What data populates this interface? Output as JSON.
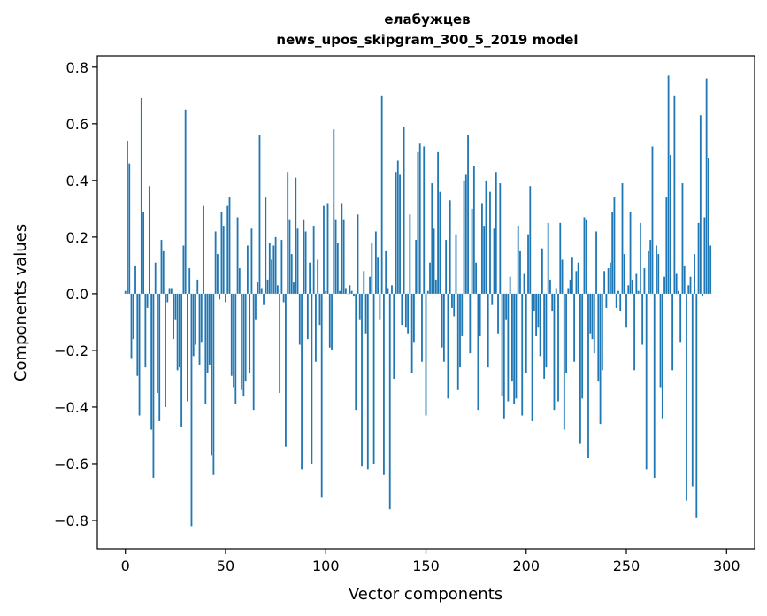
{
  "chart_data": {
    "type": "bar",
    "title": "елабужцев",
    "subtitle": "news_upos_skipgram_300_5_2019 model",
    "xlabel": "Vector components",
    "ylabel": "Components values",
    "xlim": [
      -14,
      314
    ],
    "ylim": [
      -0.9,
      0.84
    ],
    "xticks": [
      0,
      50,
      100,
      150,
      200,
      250,
      300
    ],
    "yticks": [
      -0.8,
      -0.6,
      -0.4,
      -0.2,
      0.0,
      0.2,
      0.4,
      0.6,
      0.8
    ],
    "ytick_labels": [
      "−0.8",
      "−0.6",
      "−0.4",
      "−0.2",
      "0.0",
      "0.2",
      "0.4",
      "0.6",
      "0.8"
    ],
    "bar_color": "#1f77b4",
    "grid": false,
    "x_start": 0,
    "values": [
      0.01,
      0.54,
      0.46,
      -0.23,
      -0.16,
      0.1,
      -0.29,
      -0.43,
      0.69,
      0.29,
      -0.26,
      -0.05,
      0.38,
      -0.48,
      -0.65,
      0.11,
      -0.35,
      -0.45,
      0.19,
      0.15,
      -0.4,
      -0.03,
      0.02,
      0.02,
      -0.16,
      -0.09,
      -0.27,
      -0.26,
      -0.47,
      0.17,
      0.65,
      -0.38,
      0.09,
      -0.82,
      -0.22,
      -0.18,
      0.05,
      -0.25,
      -0.17,
      0.31,
      -0.39,
      -0.28,
      -0.25,
      -0.57,
      -0.64,
      0.22,
      0.14,
      -0.02,
      0.29,
      0.24,
      -0.03,
      0.31,
      0.34,
      -0.29,
      -0.33,
      -0.39,
      0.27,
      0.09,
      -0.34,
      -0.36,
      -0.31,
      0.17,
      -0.28,
      0.23,
      -0.41,
      -0.09,
      0.04,
      0.56,
      0.02,
      -0.04,
      0.34,
      0.05,
      0.18,
      0.12,
      0.17,
      0.2,
      0.03,
      -0.35,
      0.19,
      -0.03,
      -0.54,
      0.43,
      0.26,
      0.14,
      0.04,
      0.41,
      0.23,
      -0.18,
      -0.62,
      0.26,
      0.22,
      -0.16,
      0.11,
      -0.6,
      0.24,
      -0.24,
      0.12,
      -0.11,
      -0.72,
      0.31,
      0.01,
      0.32,
      -0.19,
      -0.2,
      0.58,
      0.26,
      0.18,
      0.01,
      0.32,
      0.26,
      0.02,
      0.0,
      0.03,
      0.01,
      -0.01,
      -0.41,
      0.28,
      -0.09,
      -0.61,
      0.08,
      -0.14,
      -0.62,
      0.06,
      0.18,
      -0.6,
      0.22,
      0.13,
      -0.09,
      0.7,
      -0.64,
      0.15,
      0.02,
      -0.76,
      0.03,
      -0.3,
      0.43,
      0.47,
      0.42,
      -0.11,
      0.59,
      -0.12,
      -0.14,
      0.28,
      -0.28,
      -0.17,
      0.19,
      0.5,
      0.53,
      -0.24,
      0.52,
      -0.43,
      0.01,
      0.11,
      0.39,
      0.23,
      0.05,
      0.5,
      0.36,
      -0.19,
      -0.24,
      0.19,
      -0.37,
      0.33,
      -0.05,
      -0.08,
      0.21,
      -0.34,
      -0.26,
      -0.15,
      0.4,
      0.42,
      0.56,
      -0.21,
      0.3,
      0.45,
      0.11,
      -0.41,
      -0.15,
      0.32,
      0.24,
      0.4,
      -0.26,
      0.36,
      -0.04,
      0.23,
      0.43,
      -0.14,
      0.39,
      -0.36,
      -0.44,
      -0.09,
      -0.38,
      0.06,
      -0.31,
      -0.39,
      -0.37,
      0.24,
      0.15,
      -0.43,
      0.07,
      -0.28,
      0.21,
      0.38,
      -0.45,
      -0.06,
      -0.15,
      -0.12,
      -0.22,
      0.16,
      -0.3,
      -0.26,
      0.25,
      0.05,
      -0.06,
      -0.41,
      0.02,
      -0.38,
      0.25,
      0.12,
      -0.48,
      -0.28,
      0.02,
      0.05,
      0.13,
      -0.24,
      0.08,
      0.11,
      -0.53,
      -0.37,
      0.27,
      0.26,
      -0.58,
      -0.14,
      -0.16,
      -0.21,
      0.22,
      -0.31,
      -0.46,
      -0.27,
      0.08,
      -0.05,
      0.09,
      0.11,
      0.29,
      0.34,
      -0.05,
      0.01,
      -0.06,
      0.39,
      0.14,
      -0.12,
      0.03,
      0.29,
      0.05,
      -0.27,
      0.07,
      0.01,
      0.25,
      -0.18,
      0.09,
      -0.62,
      0.15,
      0.19,
      0.52,
      -0.65,
      0.17,
      0.14,
      -0.33,
      -0.44,
      0.06,
      0.34,
      0.77,
      0.49,
      -0.27,
      0.7,
      0.07,
      0.01,
      -0.17,
      0.39,
      0.1,
      -0.73,
      0.03,
      0.06,
      -0.68,
      0.14,
      -0.79,
      0.25,
      0.63,
      -0.01,
      0.27,
      0.76,
      0.48,
      0.17
    ]
  }
}
